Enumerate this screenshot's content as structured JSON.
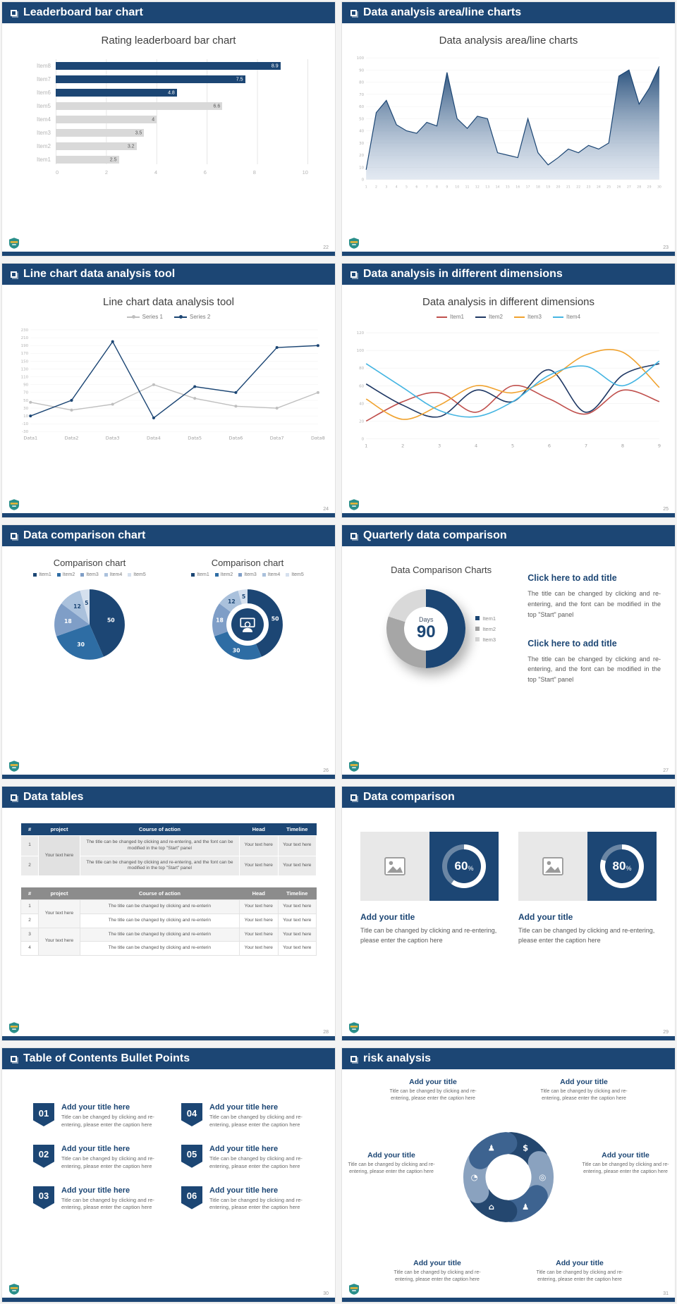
{
  "theme": {
    "navy": "#1c4674",
    "bar_gray": "#d9d9d9"
  },
  "slides": [
    {
      "title": "Leaderboard bar chart",
      "page": "22",
      "chart": {
        "type": "barh",
        "title": "Rating leaderboard bar chart",
        "categories": [
          "Item8",
          "Item7",
          "Item6",
          "Item5",
          "Item4",
          "Item3",
          "Item2",
          "Item1"
        ],
        "values": [
          8.9,
          7.5,
          4.8,
          6.6,
          4,
          3.5,
          3.2,
          2.5
        ],
        "highlight": [
          true,
          true,
          true,
          false,
          false,
          false,
          false,
          false
        ],
        "xticks": [
          0,
          2,
          4,
          6,
          8,
          10
        ],
        "xlim": [
          0,
          10
        ]
      }
    },
    {
      "title": "Data analysis area/line charts",
      "page": "23",
      "chart": {
        "type": "area",
        "title": "Data analysis area/line charts",
        "color": "#1c4674",
        "x": [
          1,
          2,
          3,
          4,
          5,
          6,
          7,
          8,
          9,
          10,
          11,
          12,
          13,
          14,
          15,
          16,
          17,
          18,
          19,
          20,
          21,
          22,
          23,
          24,
          25,
          26,
          27,
          28,
          29,
          30
        ],
        "values": [
          8,
          55,
          65,
          45,
          40,
          38,
          47,
          44,
          88,
          50,
          42,
          52,
          50,
          22,
          20,
          18,
          50,
          22,
          12,
          18,
          25,
          22,
          28,
          25,
          30,
          85,
          90,
          62,
          75,
          93
        ],
        "ylim": [
          0,
          100
        ],
        "yticks": [
          0,
          10,
          20,
          30,
          40,
          50,
          60,
          70,
          80,
          90,
          100
        ]
      }
    },
    {
      "title": "Line chart data analysis tool",
      "page": "24",
      "chart": {
        "type": "line",
        "title": "Line chart data analysis tool",
        "categories": [
          "Data1",
          "Data2",
          "Data3",
          "Data4",
          "Data5",
          "Data6",
          "Data7",
          "Data8"
        ],
        "series": [
          {
            "name": "Series 1",
            "color": "#bfbfbf",
            "values": [
              45,
              25,
              40,
              90,
              55,
              35,
              30,
              70
            ]
          },
          {
            "name": "Series 2",
            "color": "#1c4674",
            "values": [
              10,
              50,
              200,
              5,
              85,
              70,
              185,
              190
            ]
          }
        ],
        "ylim": [
          -30,
          230
        ],
        "yticks": [
          230,
          210,
          190,
          170,
          150,
          130,
          110,
          90,
          70,
          50,
          30,
          10,
          -10,
          -30
        ]
      }
    },
    {
      "title": "Data analysis in different dimensions",
      "page": "25",
      "chart": {
        "type": "smoothline",
        "title": "Data analysis in different dimensions",
        "x": [
          1,
          2,
          3,
          4,
          5,
          6,
          7,
          8,
          9
        ],
        "series": [
          {
            "name": "Item1",
            "color": "#c0504d",
            "values": [
              20,
              42,
              52,
              30,
              60,
              45,
              28,
              55,
              42
            ]
          },
          {
            "name": "Item2",
            "color": "#1f3864",
            "values": [
              62,
              38,
              25,
              55,
              42,
              78,
              30,
              72,
              85
            ]
          },
          {
            "name": "Item3",
            "color": "#f0a22e",
            "values": [
              45,
              22,
              38,
              60,
              52,
              68,
              95,
              98,
              58
            ]
          },
          {
            "name": "Item4",
            "color": "#45b5e2",
            "values": [
              85,
              58,
              32,
              25,
              42,
              72,
              82,
              60,
              88
            ]
          }
        ],
        "ylim": [
          0,
          120
        ],
        "yticks": [
          0,
          20,
          40,
          60,
          80,
          100,
          120
        ]
      }
    },
    {
      "title": "Data comparison chart",
      "page": "26",
      "pie": {
        "type": "pie",
        "title": "Comparison chart",
        "legend": [
          "Item1",
          "Item2",
          "Item3",
          "Item4",
          "Item5"
        ],
        "values": [
          50,
          30,
          18,
          12,
          5
        ],
        "colors": [
          "#1c4674",
          "#2e6da4",
          "#7f9ec7",
          "#aac1dc",
          "#d5e0ee"
        ],
        "label_colors": [
          "#ffffff",
          "#ffffff",
          "#ffffff",
          "#1c4674",
          "#1c4674"
        ]
      },
      "donut": {
        "type": "donut",
        "title": "Comparison chart",
        "legend": [
          "Item1",
          "Item2",
          "Item3",
          "Item4",
          "Item5"
        ],
        "values": [
          50,
          30,
          18,
          12,
          5
        ],
        "colors": [
          "#1c4674",
          "#2e6da4",
          "#7f9ec7",
          "#aac1dc",
          "#d5e0ee"
        ],
        "label_colors": [
          "#ffffff",
          "#ffffff",
          "#ffffff",
          "#1c4674",
          "#1c4674"
        ]
      }
    },
    {
      "title": "Quarterly data comparison",
      "page": "27",
      "chart_title": "Data Comparison Charts",
      "center_label": "Days",
      "center_value": "90",
      "legend": [
        "Item1",
        "Item2",
        "Item3"
      ],
      "ring": {
        "type": "conic",
        "values": [
          50,
          30,
          20
        ],
        "colors": [
          "#1c4674",
          "#a6a6a6",
          "#d9d9d9"
        ]
      },
      "blocks": [
        {
          "heading": "Click here to add title",
          "body": "The title can be changed by clicking and re-entering, and the font can be modified in the top \"Start\" panel"
        },
        {
          "heading": "Click here to add title",
          "body": "The title can be changed by clicking and re-entering, and the font can be modified in the top \"Start\" panel"
        }
      ]
    },
    {
      "title": "Data tables",
      "page": "28",
      "table1": {
        "headers": [
          "#",
          "project",
          "Course of action",
          "Head",
          "Timeline"
        ],
        "project": "Your text here",
        "rows": [
          {
            "num": "1",
            "course": "The title can be changed by clicking and re-entering, and the font can be modified in the top \"Start\" panel",
            "head": "Your text here",
            "timeline": "Your text here"
          },
          {
            "num": "2",
            "course": "The title can be changed by clicking and re-entering, and the font can be modified in the top \"Start\" panel",
            "head": "Your text here",
            "timeline": "Your text here"
          }
        ]
      },
      "table2": {
        "headers": [
          "#",
          "project",
          "Course of action",
          "Head",
          "Timeline"
        ],
        "project_a": "Your text here",
        "project_b": "Your text here",
        "rows": [
          {
            "num": "1",
            "course": "The title can be changed by clicking and re-enterin",
            "head": "Your text here",
            "timeline": "Your text here"
          },
          {
            "num": "2",
            "course": "The title can be changed by clicking and re-enterin",
            "head": "Your text here",
            "timeline": "Your text here"
          },
          {
            "num": "3",
            "course": "The title can be changed by clicking and re-enterin",
            "head": "Your text here",
            "timeline": "Your text here"
          },
          {
            "num": "4",
            "course": "The title can be changed by clicking and re-enterin",
            "head": "Your text here",
            "timeline": "Your text here"
          }
        ]
      }
    },
    {
      "title": "Data comparison",
      "page": "29",
      "cards": [
        {
          "percent": "60",
          "sign": "%",
          "ring": {
            "type": "ring",
            "percent": 60,
            "fill": "#ffffff",
            "track": "rgba(255,255,255,0.35)"
          },
          "title": "Add your title",
          "caption": "Title can be changed by clicking and re-entering, please enter the caption here"
        },
        {
          "percent": "80",
          "sign": "%",
          "ring": {
            "type": "ring",
            "percent": 80,
            "fill": "#ffffff",
            "track": "rgba(255,255,255,0.35)"
          },
          "title": "Add your title",
          "caption": "Title can be changed by clicking and re-entering, please enter the caption here"
        }
      ]
    },
    {
      "title": "Table of Contents Bullet Points",
      "page": "30",
      "items": [
        {
          "num": "01",
          "title": "Add your title here",
          "caption": "Title can be changed by clicking and re-entering, please enter the caption here"
        },
        {
          "num": "02",
          "title": "Add your title here",
          "caption": "Title can be changed by clicking and re-entering, please enter the caption here"
        },
        {
          "num": "03",
          "title": "Add your title here",
          "caption": "Title can be changed by clicking and re-entering, please enter the caption here"
        },
        {
          "num": "04",
          "title": "Add your title here",
          "caption": "Title can be changed by clicking and re-entering, please enter the caption here"
        },
        {
          "num": "05",
          "title": "Add your title here",
          "caption": "Title can be changed by clicking and re-entering, please enter the caption here"
        },
        {
          "num": "06",
          "title": "Add your title here",
          "caption": "Title can be changed by clicking and re-entering, please enter the caption here"
        }
      ]
    },
    {
      "title": "risk analysis",
      "page": "31",
      "wheel": {
        "type": "pinwheel",
        "segments": [
          {
            "color": "#24476f",
            "glyph": "$",
            "icon": "money-bag-icon"
          },
          {
            "color": "#8aa2bf",
            "glyph": "◎",
            "icon": "coins-icon"
          },
          {
            "color": "#3d6390",
            "glyph": "♟",
            "icon": "person-icon"
          },
          {
            "color": "#24476f",
            "glyph": "⌂",
            "icon": "building-icon"
          },
          {
            "color": "#8aa2bf",
            "glyph": "◔",
            "icon": "pie-chart-icon"
          },
          {
            "color": "#3d6390",
            "glyph": "♟",
            "icon": "team-icon"
          }
        ]
      },
      "items": [
        {
          "title": "Add your title",
          "caption": "Title can be changed by clicking and re-entering, please enter the caption here"
        },
        {
          "title": "Add your title",
          "caption": "Title can be changed by clicking and re-entering, please enter the caption here"
        },
        {
          "title": "Add your title",
          "caption": "Title can be changed by clicking and re-entering, please enter the caption here"
        },
        {
          "title": "Add your title",
          "caption": "Title can be changed by clicking and re-entering, please enter the caption here"
        },
        {
          "title": "Add your title",
          "caption": "Title can be changed by clicking and re-entering, please enter the caption here"
        },
        {
          "title": "Add your title",
          "caption": "Title can be changed by clicking and re-entering, please enter the caption here"
        }
      ]
    }
  ]
}
